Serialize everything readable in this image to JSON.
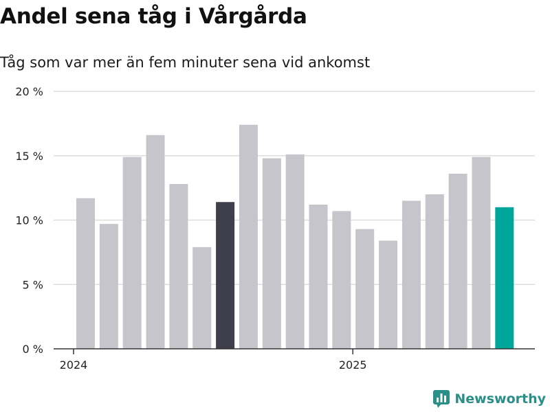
{
  "title": "Andel sena tåg i Vårgårda",
  "subtitle": "Tåg som var mer än fem minuter sena vid ankomst",
  "brand": {
    "label": "Newsworthy",
    "icon": "newsworthy-logo-icon",
    "color": "#2a8f86"
  },
  "colors": {
    "bar": "#c6c5cc",
    "highlight_dark": "#3f3e4b",
    "highlight_teal": "#00a69a",
    "grid": "#dddddd",
    "axis": "#333333"
  },
  "chart_data": {
    "type": "bar",
    "title": "Andel sena tåg i Vårgårda",
    "subtitle": "Tåg som var mer än fem minuter sena vid ankomst",
    "xlabel": "",
    "ylabel": "",
    "ylim": [
      0,
      20
    ],
    "y_ticks": [
      0,
      5,
      10,
      15,
      20
    ],
    "y_tick_labels": [
      "0 %",
      "5 %",
      "10 %",
      "15 %",
      "20 %"
    ],
    "x_tick_labels": [
      {
        "label": "2024",
        "at_index": 0
      },
      {
        "label": "2025",
        "at_index": 12
      }
    ],
    "values": [
      11.7,
      9.7,
      14.9,
      16.6,
      12.8,
      7.9,
      11.4,
      17.4,
      14.8,
      15.1,
      11.2,
      10.7,
      9.3,
      8.4,
      11.5,
      12.0,
      13.6,
      14.9,
      11.0
    ],
    "highlights": [
      {
        "index": 6,
        "color": "#3f3e4b"
      },
      {
        "index": 18,
        "color": "#00a69a"
      }
    ],
    "grid": true
  }
}
